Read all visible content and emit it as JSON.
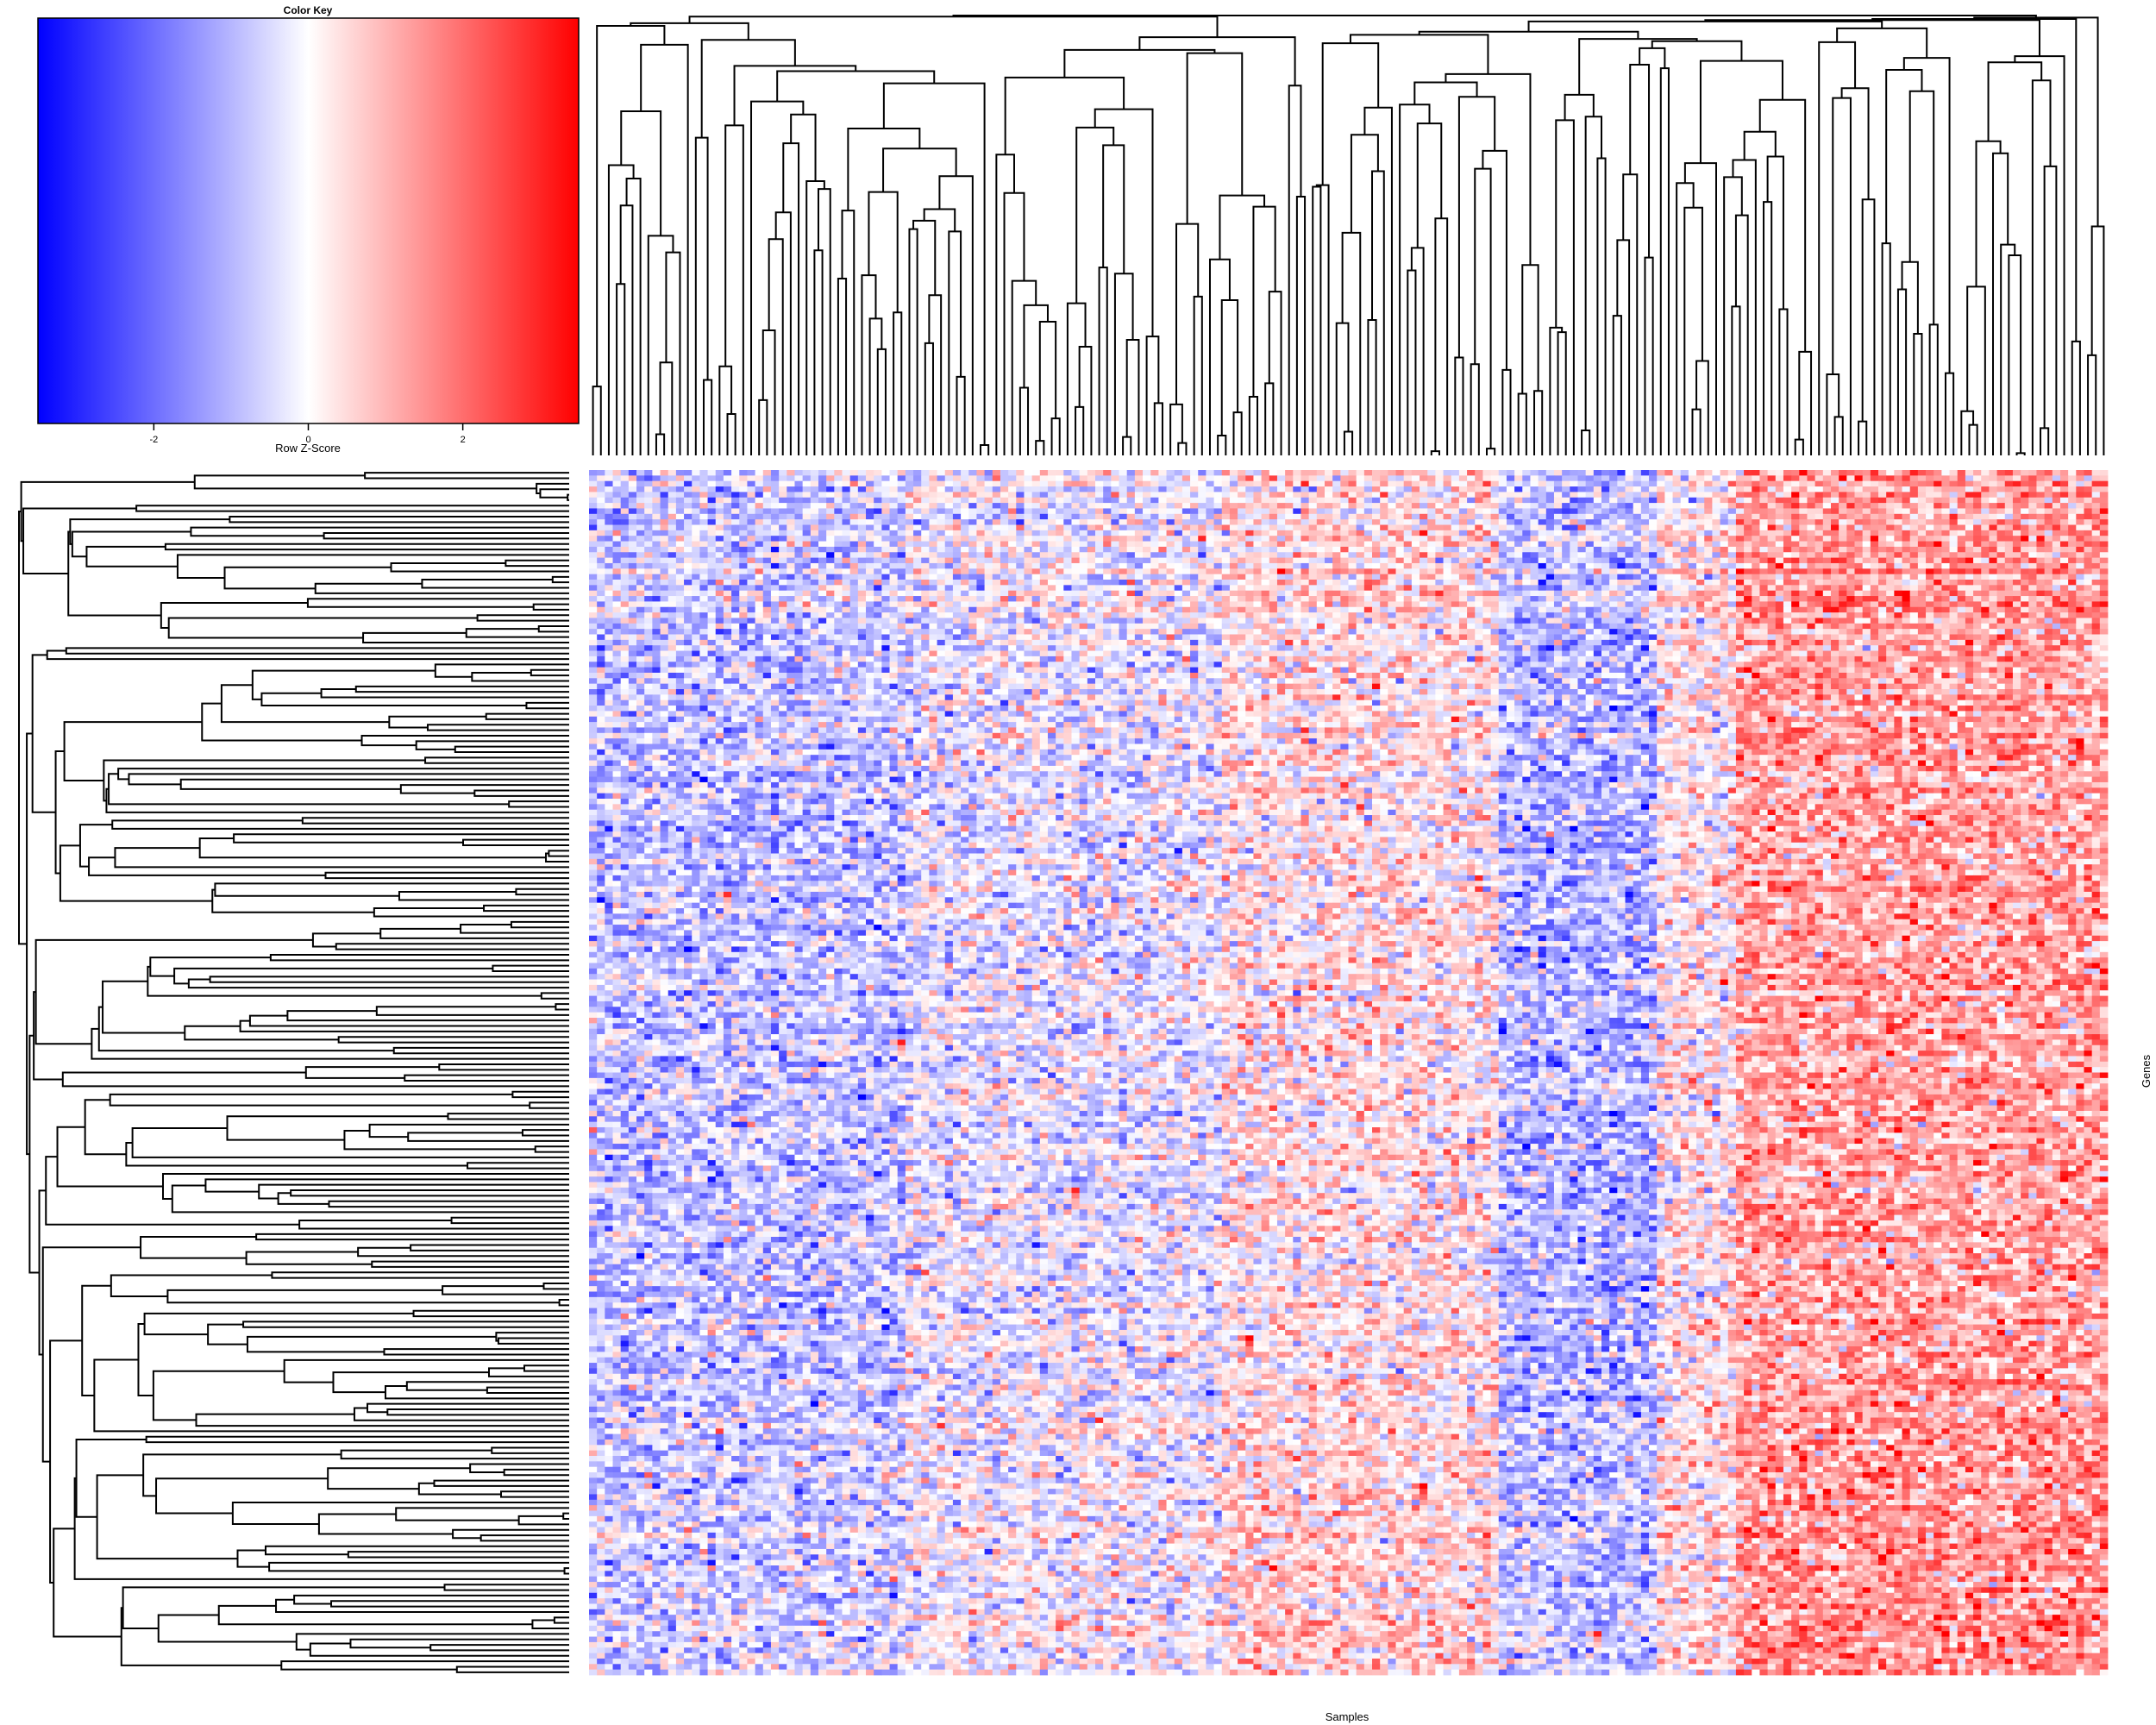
{
  "chart_data": {
    "type": "heatmap",
    "color_key": {
      "title": "Color Key",
      "xlabel": "Row Z-Score",
      "range": [
        -3.5,
        3.5
      ],
      "ticks": [
        -2,
        0,
        2
      ],
      "tick_labels": [
        "-2",
        "0",
        "2"
      ],
      "colors": {
        "low": "#0000ff",
        "mid": "#ffffff",
        "high": "#ff0000"
      }
    },
    "xlabel": "Samples",
    "ylabel": "Genes",
    "n_columns": 192,
    "n_rows": 220,
    "column_groups": [
      {
        "from": 0,
        "to": 40,
        "mean": -0.8
      },
      {
        "from": 40,
        "to": 80,
        "mean": -0.3
      },
      {
        "from": 80,
        "to": 115,
        "mean": 0.3
      },
      {
        "from": 115,
        "to": 135,
        "mean": -1.0
      },
      {
        "from": 135,
        "to": 145,
        "mean": 0.2
      },
      {
        "from": 145,
        "to": 192,
        "mean": 1.2
      }
    ],
    "row_groups": [
      {
        "from": 0,
        "to": 30,
        "mean": 0.3
      },
      {
        "from": 30,
        "to": 170,
        "mean": 0.0
      },
      {
        "from": 170,
        "to": 220,
        "mean": 0.5
      }
    ]
  }
}
